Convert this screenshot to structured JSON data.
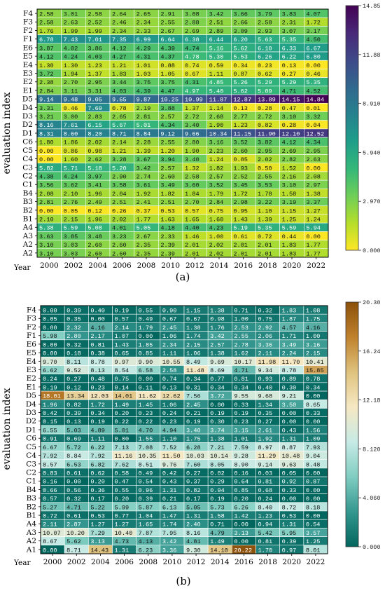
{
  "chart_data": [
    {
      "type": "heatmap",
      "panel_label": "(a)",
      "ylabel": "evaluation index",
      "xlabel": "Year",
      "x": [
        "2000",
        "2002",
        "2004",
        "2006",
        "2008",
        "2010",
        "2012",
        "2014",
        "2016",
        "2018",
        "2020",
        "2022"
      ],
      "y": [
        "F4",
        "F3",
        "F2",
        "F1",
        "E6",
        "E5",
        "E4",
        "E3",
        "E2",
        "E1",
        "D5",
        "D4",
        "D3",
        "D2",
        "D1",
        "C6",
        "C5",
        "C4",
        "C3",
        "C2",
        "C1",
        "B4",
        "B3",
        "B2",
        "B1",
        "A4",
        "A3",
        "A2",
        "A2"
      ],
      "values": [
        [
          2.58,
          3.01,
          2.58,
          2.64,
          2.65,
          2.91,
          3.08,
          3.42,
          3.66,
          3.79,
          3.83,
          4.07
        ],
        [
          2.58,
          2.63,
          2.52,
          2.46,
          2.34,
          2.55,
          2.88,
          2.51,
          2.66,
          2.58,
          2.31,
          1.72
        ],
        [
          1.76,
          1.99,
          1.99,
          2.34,
          2.33,
          2.67,
          2.69,
          2.89,
          3.09,
          2.93,
          3.07,
          3.17
        ],
        [
          6.78,
          7.43,
          7.01,
          7.35,
          6.99,
          6.64,
          6.38,
          6.44,
          6.2,
          5.63,
          5.35,
          4.5
        ],
        [
          3.87,
          4.02,
          3.86,
          4.12,
          4.29,
          4.39,
          4.74,
          5.16,
          5.62,
          6.1,
          6.33,
          6.67
        ],
        [
          4.12,
          4.24,
          4.03,
          4.27,
          4.31,
          4.37,
          4.78,
          5.3,
          5.53,
          6.26,
          6.22,
          6.8
        ],
        [
          1.3,
          1.3,
          1.23,
          1.21,
          1.01,
          0.88,
          0.74,
          0.59,
          0.34,
          0.23,
          0.13,
          0.0
        ],
        [
          3.72,
          1.94,
          1.37,
          1.83,
          1.03,
          1.05,
          0.67,
          1.11,
          0.87,
          0.62,
          0.27,
          0.46
        ],
        [
          2.38,
          2.7,
          2.95,
          3.44,
          3.75,
          3.75,
          4.31,
          4.85,
          5.26,
          5.29,
          5.29,
          5.35
        ],
        [
          2.84,
          3.11,
          3.31,
          4.03,
          4.39,
          4.47,
          4.97,
          5.4,
          5.62,
          5.09,
          4.71,
          4.52
        ],
        [
          9.14,
          9.48,
          9.05,
          9.65,
          9.87,
          10.25,
          10.99,
          11.87,
          12.87,
          13.89,
          14.15,
          14.84
        ],
        [
          3.31,
          0.46,
          7.69,
          0.78,
          2.19,
          3.88,
          1.37,
          1.14,
          0.13,
          0.28,
          0.47,
          0.01
        ],
        [
          3.21,
          3.0,
          2.83,
          2.65,
          2.81,
          2.57,
          2.72,
          2.68,
          2.77,
          2.72,
          3.1,
          3.32
        ],
        [
          8.16,
          7.61,
          6.15,
          5.67,
          5.01,
          4.34,
          3.4,
          1.9,
          1.23,
          0.82,
          0.28,
          0.04
        ],
        [
          8.31,
          8.6,
          8.2,
          8.71,
          8.84,
          9.12,
          9.66,
          10.34,
          11.15,
          11.9,
          12.1,
          12.52
        ],
        [
          1.8,
          1.86,
          2.02,
          2.14,
          2.28,
          2.55,
          2.8,
          3.16,
          3.52,
          3.82,
          4.12,
          4.34
        ],
        [
          0.0,
          0.86,
          0.98,
          1.21,
          1.39,
          1.2,
          1.9,
          2.23,
          2.6,
          2.95,
          2.69,
          2.95
        ],
        [
          0.0,
          1.6,
          2.62,
          3.28,
          3.67,
          3.94,
          3.4,
          1.24,
          0.85,
          2.02,
          2.82,
          2.63
        ],
        [
          5.82,
          5.71,
          5.18,
          5.2,
          3.42,
          2.57,
          1.32,
          1.82,
          1.93,
          0.5,
          1.52,
          0.0
        ],
        [
          4.38,
          4.24,
          3.97,
          2.9,
          2.74,
          2.6,
          2.58,
          2.57,
          2.52,
          2.55,
          2.16,
          2.08
        ],
        [
          3.56,
          3.62,
          3.41,
          3.58,
          3.61,
          3.49,
          3.6,
          3.52,
          3.45,
          3.53,
          3.1,
          2.97
        ],
        [
          2.08,
          2.1,
          1.96,
          2.04,
          1.92,
          1.82,
          1.84,
          1.79,
          1.72,
          1.78,
          1.58,
          1.38
        ],
        [
          2.81,
          2.76,
          2.49,
          2.51,
          2.41,
          2.51,
          2.7,
          2.84,
          2.98,
          3.22,
          3.19,
          3.37
        ],
        [
          0.0,
          0.05,
          0.12,
          0.26,
          0.37,
          0.53,
          0.57,
          0.75,
          0.95,
          1.1,
          1.15,
          1.27
        ],
        [
          2.1,
          2.15,
          1.96,
          2.02,
          1.77,
          1.63,
          1.65,
          1.6,
          1.43,
          1.39,
          1.25,
          1.24
        ],
        [
          5.38,
          5.59,
          5.08,
          4.01,
          5.05,
          4.18,
          4.4,
          4.23,
          5.19,
          5.35,
          5.59,
          5.94
        ],
        [
          3.63,
          3.85,
          3.48,
          3.23,
          2.67,
          2.33,
          1.46,
          1.0,
          0.61,
          0.72,
          0.44,
          0.0
        ],
        [
          3.1,
          3.03,
          2.6,
          2.6,
          2.35,
          2.39,
          2.01,
          2.02,
          2.01,
          2.01,
          1.83,
          1.77
        ],
        [
          3.1,
          3.03,
          2.6,
          2.6,
          2.35,
          2.39,
          2.01,
          2.02,
          2.01,
          2.01,
          1.83,
          1.77
        ]
      ],
      "vmin": 0,
      "vmax": 14.85,
      "colorbar_ticks": [
        "14.85",
        "11.88",
        "8.910",
        "5.940",
        "2.970",
        "0.000"
      ],
      "colormap": [
        "#fde725",
        "#b5de2b",
        "#6ece58",
        "#35b779",
        "#1f9e89",
        "#26828e",
        "#31688e",
        "#3e4989",
        "#482878",
        "#440154"
      ]
    },
    {
      "type": "heatmap",
      "panel_label": "(b)",
      "ylabel": "evaluation index",
      "xlabel": "Year",
      "x": [
        "2000",
        "2002",
        "2004",
        "2006",
        "2008",
        "2010",
        "2012",
        "2014",
        "2016",
        "2018",
        "2020",
        "2022"
      ],
      "y": [
        "F4",
        "F3",
        "F2",
        "F1",
        "E6",
        "E5",
        "E4",
        "E3",
        "E2",
        "E1",
        "D5",
        "D4",
        "D3",
        "D2",
        "D1",
        "C6",
        "C5",
        "C4",
        "C3",
        "C2",
        "C1",
        "B4",
        "B3",
        "B2",
        "B1",
        "A4",
        "A3",
        "A2",
        "A1"
      ],
      "values": [
        [
          0.0,
          0.39,
          0.4,
          0.19,
          0.55,
          0.9,
          1.15,
          1.38,
          0.71,
          0.32,
          1.83,
          1.08
        ],
        [
          0.05,
          0.35,
          0.0,
          0.57,
          0.49,
          0.67,
          0.67,
          0.98,
          1.0,
          0.75,
          1.87,
          1.75
        ],
        [
          0.0,
          2.32,
          4.16,
          2.14,
          1.79,
          2.45,
          1.38,
          1.76,
          2.53,
          2.92,
          4.57,
          4.16
        ],
        [
          5.98,
          2.8,
          2.17,
          1.07,
          0.0,
          1.06,
          1.74,
          3.42,
          2.55,
          2.06,
          1.71,
          1.0
        ],
        [
          0.0,
          0.32,
          0.81,
          1.43,
          1.85,
          2.34,
          2.15,
          2.57,
          2.78,
          3.36,
          3.49,
          3.16
        ],
        [
          0.0,
          0.18,
          0.38,
          0.65,
          0.85,
          1.11,
          1.06,
          1.38,
          1.62,
          2.11,
          2.24,
          2.15
        ],
        [
          9.7,
          8.11,
          8.78,
          9.97,
          9.9,
          10.55,
          8.49,
          9.69,
          10.17,
          11.98,
          11.7,
          10.41
        ],
        [
          6.62,
          9.52,
          8.13,
          8.54,
          6.58,
          2.58,
          11.48,
          8.69,
          4.71,
          9.34,
          8.78,
          15.85
        ],
        [
          0.24,
          0.27,
          0.48,
          0.75,
          0.0,
          0.74,
          0.34,
          0.77,
          0.81,
          0.93,
          0.89,
          0.78
        ],
        [
          0.19,
          0.12,
          0.23,
          0.14,
          0.11,
          0.13,
          0.31,
          0.34,
          0.34,
          0.4,
          0.3,
          0.34
        ],
        [
          18.01,
          13.34,
          12.03,
          14.01,
          11.62,
          12.62,
          7.56,
          3.72,
          9.55,
          9.68,
          9.21,
          0.0
        ],
        [
          1.96,
          0.82,
          1.72,
          1.49,
          1.45,
          1.06,
          2.45,
          0.0,
          0.33,
          1.34,
          3.5,
          8.65
        ],
        [
          0.42,
          0.39,
          0.34,
          0.2,
          0.23,
          0.24,
          0.21,
          0.19,
          0.19,
          0.35,
          0.0,
          0.33
        ],
        [
          0.15,
          0.13,
          0.19,
          0.22,
          0.22,
          0.23,
          0.19,
          0.3,
          0.23,
          0.27,
          0.0,
          0.0
        ],
        [
          6.55,
          5.03,
          4.89,
          5.01,
          4.7,
          4.94,
          3.4,
          3.74,
          3.15,
          2.61,
          0.43,
          1.56
        ],
        [
          0.91,
          0.69,
          1.11,
          0.0,
          1.55,
          1.1,
          1.75,
          1.38,
          1.01,
          1.92,
          1.31,
          1.09
        ],
        [
          6.67,
          5.72,
          6.22,
          7.13,
          7.08,
          7.52,
          6.28,
          7.21,
          7.59,
          8.97,
          8.87,
          7.93
        ],
        [
          7.92,
          8.84,
          7.92,
          11.16,
          10.35,
          11.5,
          10.03,
          10.14,
          9.28,
          11.29,
          10.48,
          9.04
        ],
        [
          8.57,
          6.53,
          6.82,
          7.62,
          8.51,
          9.76,
          7.6,
          8.05,
          8.9,
          9.14,
          9.63,
          8.48
        ],
        [
          0.83,
          0.61,
          0.62,
          0.58,
          0.49,
          0.42,
          0.27,
          0.02,
          0.16,
          0.03,
          0.05,
          0.0
        ],
        [
          0.16,
          0.0,
          0.2,
          0.47,
          0.54,
          0.43,
          0.37,
          0.29,
          0.64,
          0.81,
          0.92,
          0.87
        ],
        [
          0.66,
          0.56,
          0.36,
          0.55,
          0.96,
          1.31,
          0.82,
          0.94,
          0.85,
          0.68,
          0.33,
          0.0
        ],
        [
          0.57,
          0.32,
          0.17,
          0.2,
          0.39,
          0.21,
          0.17,
          0.19,
          0.2,
          0.24,
          0.0,
          0.0
        ],
        [
          5.27,
          4.71,
          5.22,
          5.99,
          5.87,
          6.13,
          5.05,
          5.73,
          6.26,
          8.4,
          8.72,
          8.18
        ],
        [
          0.72,
          0.61,
          0.53,
          0.77,
          1.04,
          1.47,
          1.31,
          1.58,
          1.42,
          1.23,
          0.53,
          0.0
        ],
        [
          2.11,
          2.87,
          1.27,
          1.27,
          1.65,
          1.74,
          2.4,
          0.71,
          0.0,
          0.94,
          1.31,
          0.54
        ],
        [
          10.07,
          10.2,
          7.29,
          10.4,
          7.87,
          7.95,
          8.16,
          4.79,
          3.13,
          5.42,
          5.95,
          3.57
        ],
        [
          8.67,
          5.62,
          3.13,
          4.73,
          4.13,
          3.42,
          4.81,
          1.49,
          0.0,
          0.81,
          0.39,
          1.25
        ],
        [
          0.0,
          8.71,
          14.43,
          1.31,
          6.23,
          3.36,
          9.3,
          14.1,
          20.22,
          1.7,
          0.97,
          8.01
        ]
      ],
      "vmin": 0,
      "vmax": 20.3,
      "colorbar_ticks": [
        "20.30",
        "16.24",
        "12.18",
        "8.120",
        "4.060",
        "0.000"
      ],
      "colormap": [
        "#01665e",
        "#35978f",
        "#80cdc1",
        "#c7eae5",
        "#f6e8c3",
        "#dfc27d",
        "#bf812d",
        "#8c510a"
      ]
    }
  ]
}
